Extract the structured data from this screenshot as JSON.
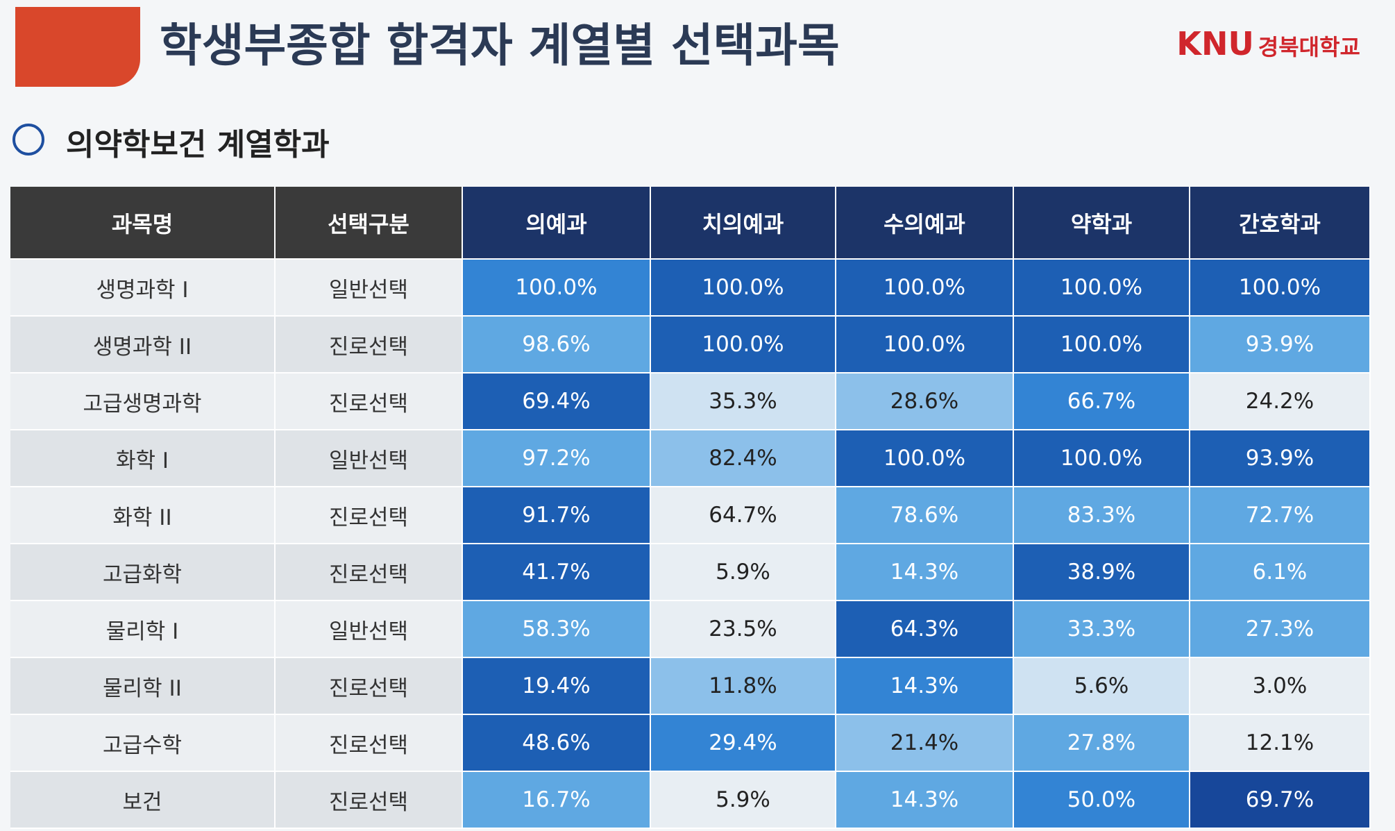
{
  "header": {
    "title": "학생부종합 합격자 계열별 선택과목",
    "logo_mark": "KNU",
    "logo_name": "경북대학교"
  },
  "section": {
    "title": "의약학보건 계열학과"
  },
  "table": {
    "columns": [
      "과목명",
      "선택구분",
      "의예과",
      "치의예과",
      "수의예과",
      "약학과",
      "간호학과"
    ],
    "rows": [
      [
        "생명과학 I",
        "일반선택",
        "100.0%",
        "100.0%",
        "100.0%",
        "100.0%",
        "100.0%"
      ],
      [
        "생명과학 II",
        "진로선택",
        "98.6%",
        "100.0%",
        "100.0%",
        "100.0%",
        "93.9%"
      ],
      [
        "고급생명과학",
        "진로선택",
        "69.4%",
        "35.3%",
        "28.6%",
        "66.7%",
        "24.2%"
      ],
      [
        "화학 I",
        "일반선택",
        "97.2%",
        "82.4%",
        "100.0%",
        "100.0%",
        "93.9%"
      ],
      [
        "화학 II",
        "진로선택",
        "91.7%",
        "64.7%",
        "78.6%",
        "83.3%",
        "72.7%"
      ],
      [
        "고급화학",
        "진로선택",
        "41.7%",
        "5.9%",
        "14.3%",
        "38.9%",
        "6.1%"
      ],
      [
        "물리학 I",
        "일반선택",
        "58.3%",
        "23.5%",
        "64.3%",
        "33.3%",
        "27.3%"
      ],
      [
        "물리학 II",
        "진로선택",
        "19.4%",
        "11.8%",
        "14.3%",
        "5.6%",
        "3.0%"
      ],
      [
        "고급수학",
        "진로선택",
        "48.6%",
        "29.4%",
        "21.4%",
        "27.8%",
        "12.1%"
      ],
      [
        "보건",
        "진로선택",
        "16.7%",
        "5.9%",
        "14.3%",
        "50.0%",
        "69.7%"
      ]
    ],
    "cell_colors": [
      [
        "#3384d4",
        "#1d5fb4",
        "#1d5fb4",
        "#1d5fb4",
        "#1d5fb4"
      ],
      [
        "#5fa8e2",
        "#1d5fb4",
        "#1d5fb4",
        "#1d5fb4",
        "#5fa8e2"
      ],
      [
        "#1d5fb4",
        "#cfe2f2",
        "#8cc0ea",
        "#3384d4",
        "#e8eef3"
      ],
      [
        "#5fa8e2",
        "#8cc0ea",
        "#1d5fb4",
        "#1d5fb4",
        "#1d5fb4"
      ],
      [
        "#1d5fb4",
        "#e8eef3",
        "#5fa8e2",
        "#5fa8e2",
        "#5fa8e2"
      ],
      [
        "#1d5fb4",
        "#e8eef3",
        "#5fa8e2",
        "#1d5fb4",
        "#5fa8e2"
      ],
      [
        "#5fa8e2",
        "#e8eef3",
        "#1d5fb4",
        "#5fa8e2",
        "#5fa8e2"
      ],
      [
        "#1d5fb4",
        "#8cc0ea",
        "#3384d4",
        "#cfe2f2",
        "#e8eef3"
      ],
      [
        "#1d5fb4",
        "#3384d4",
        "#8cc0ea",
        "#5fa8e2",
        "#e8eef3"
      ],
      [
        "#5fa8e2",
        "#e8eef3",
        "#5fa8e2",
        "#3384d4",
        "#17479a"
      ]
    ]
  }
}
